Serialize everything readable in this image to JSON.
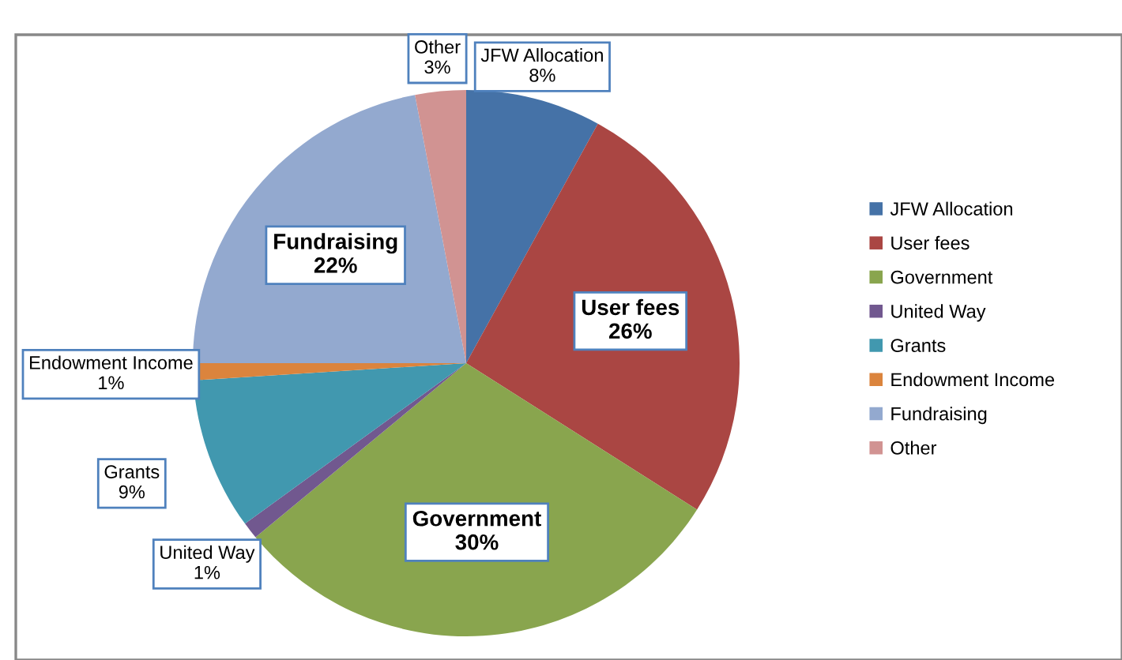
{
  "chart_data": {
    "type": "pie",
    "categories": [
      "JFW Allocation",
      "User fees",
      "Government",
      "United Way",
      "Grants",
      "Endowment Income",
      "Fundraising",
      "Other"
    ],
    "values": [
      8,
      26,
      30,
      1,
      9,
      1,
      22,
      3
    ],
    "value_labels": [
      "8%",
      "26%",
      "30%",
      "1%",
      "9%",
      "1%",
      "22%",
      "3%"
    ],
    "colors": [
      "#4572a7",
      "#aa4643",
      "#89a54e",
      "#71588f",
      "#4198af",
      "#db843d",
      "#93a9cf",
      "#d19392"
    ],
    "legend": "right"
  }
}
